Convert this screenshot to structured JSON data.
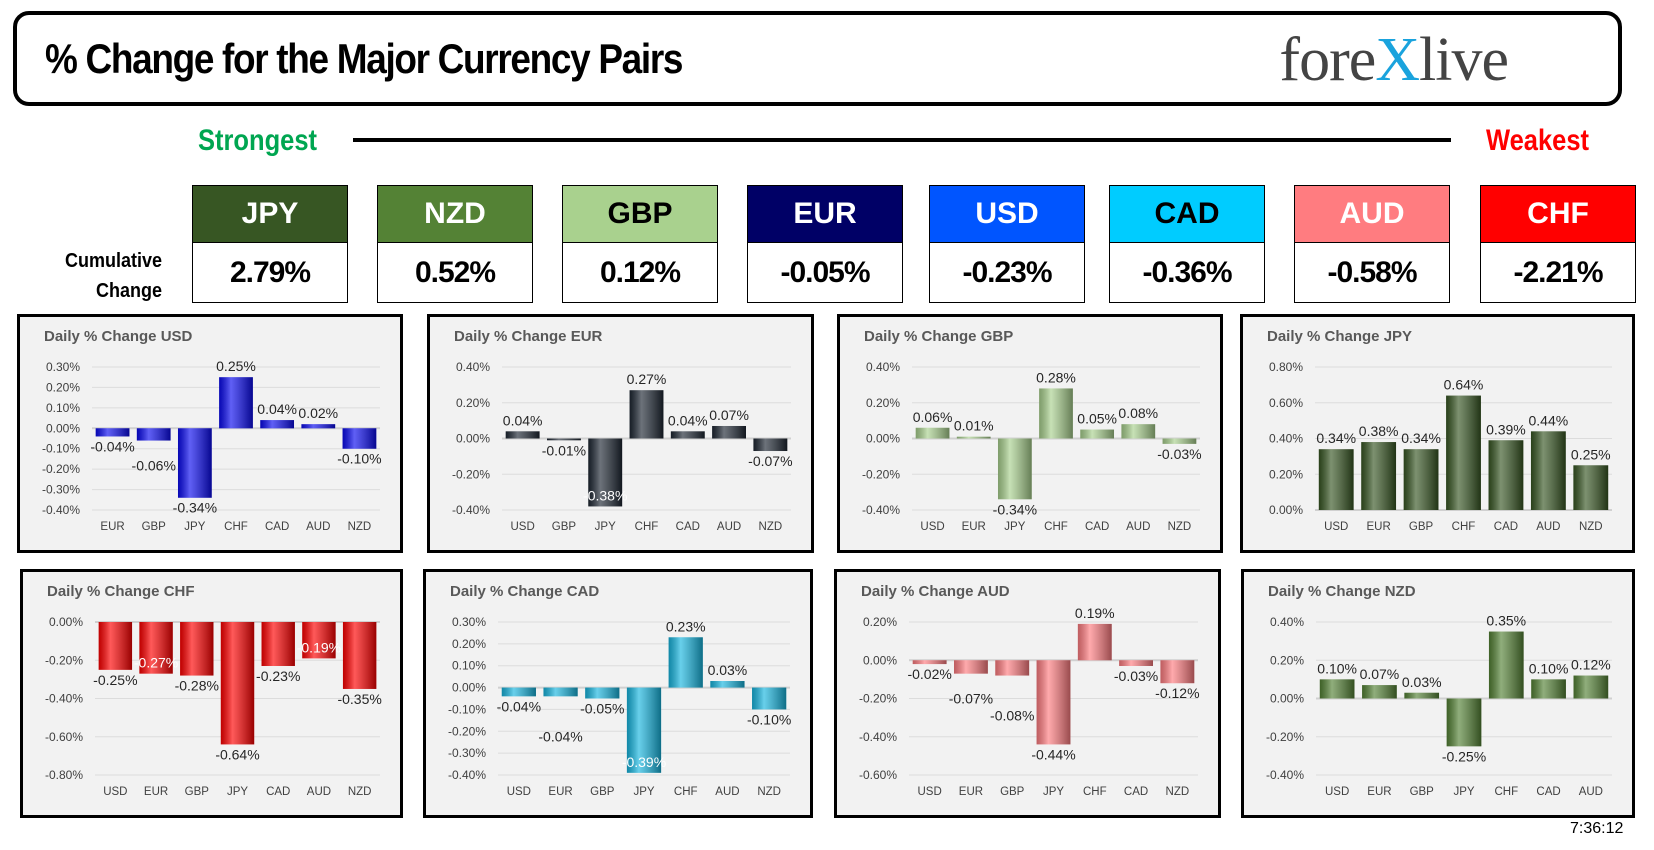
{
  "header": {
    "title": "% Change for the Major Currency Pairs",
    "logo_text": "forexlive",
    "logo_parts": [
      "fore",
      "X",
      "live"
    ]
  },
  "scale": {
    "strongest": "Strongest",
    "weakest": "Weakest"
  },
  "cumulative_label": [
    "Cumulative",
    "Change"
  ],
  "colors": {
    "USD": "#0a0af0",
    "EUR": "#1e2733",
    "GBP": "#a9d18e",
    "JPY": "#375623",
    "CHF": "#ff0000",
    "CAD": "#17b6e0",
    "AUD": "#ff7c80",
    "NZD": "#548235"
  },
  "ranking": [
    {
      "currency": "JPY",
      "value": "2.79%",
      "bg": "#375623",
      "fg": "#ffffff"
    },
    {
      "currency": "NZD",
      "value": "0.52%",
      "bg": "#548235",
      "fg": "#ffffff"
    },
    {
      "currency": "GBP",
      "value": "0.12%",
      "bg": "#a9d18e",
      "fg": "#000000"
    },
    {
      "currency": "EUR",
      "value": "-0.05%",
      "bg": "#000066",
      "fg": "#ffffff"
    },
    {
      "currency": "USD",
      "value": "-0.23%",
      "bg": "#0055ff",
      "fg": "#ffffff"
    },
    {
      "currency": "CAD",
      "value": "-0.36%",
      "bg": "#00ccff",
      "fg": "#000000"
    },
    {
      "currency": "AUD",
      "value": "-0.58%",
      "bg": "#ff7c80",
      "fg": "#ffffff"
    },
    {
      "currency": "CHF",
      "value": "-2.21%",
      "bg": "#ff0000",
      "fg": "#ffffff"
    }
  ],
  "chart_data": [
    {
      "type": "bar",
      "title": "Daily % Change USD",
      "base": "USD",
      "categories": [
        "EUR",
        "GBP",
        "JPY",
        "CHF",
        "CAD",
        "AUD",
        "NZD"
      ],
      "values": [
        -0.04,
        -0.06,
        -0.34,
        0.25,
        0.04,
        0.02,
        -0.1
      ],
      "ylim": [
        -0.4,
        0.3
      ],
      "yticks": [
        0.3,
        0.2,
        0.1,
        0,
        -0.1,
        -0.2,
        -0.3,
        -0.4
      ],
      "grid": true
    },
    {
      "type": "bar",
      "title": "Daily % Change EUR",
      "base": "EUR",
      "categories": [
        "USD",
        "GBP",
        "JPY",
        "CHF",
        "CAD",
        "AUD",
        "NZD"
      ],
      "values": [
        0.04,
        -0.01,
        -0.38,
        0.27,
        0.04,
        0.07,
        -0.07
      ],
      "ylim": [
        -0.4,
        0.4
      ],
      "yticks": [
        0.4,
        0.2,
        0,
        -0.2,
        -0.4
      ],
      "grid": true
    },
    {
      "type": "bar",
      "title": "Daily % Change GBP",
      "base": "GBP",
      "categories": [
        "USD",
        "EUR",
        "JPY",
        "CHF",
        "CAD",
        "AUD",
        "NZD"
      ],
      "values": [
        0.06,
        0.01,
        -0.34,
        0.28,
        0.05,
        0.08,
        -0.03
      ],
      "ylim": [
        -0.4,
        0.4
      ],
      "yticks": [
        0.4,
        0.2,
        0,
        -0.2,
        -0.4
      ],
      "grid": true
    },
    {
      "type": "bar",
      "title": "Daily % Change JPY",
      "base": "JPY",
      "categories": [
        "USD",
        "EUR",
        "GBP",
        "CHF",
        "CAD",
        "AUD",
        "NZD"
      ],
      "values": [
        0.34,
        0.38,
        0.34,
        0.64,
        0.39,
        0.44,
        0.25
      ],
      "ylim": [
        0,
        0.8
      ],
      "yticks": [
        0.8,
        0.6,
        0.4,
        0.2,
        0
      ],
      "grid": true
    },
    {
      "type": "bar",
      "title": "Daily % Change CHF",
      "base": "CHF",
      "categories": [
        "USD",
        "EUR",
        "GBP",
        "JPY",
        "CAD",
        "AUD",
        "NZD"
      ],
      "values": [
        -0.25,
        -0.27,
        -0.28,
        -0.64,
        -0.23,
        -0.19,
        -0.35
      ],
      "ylim": [
        -0.8,
        0
      ],
      "yticks": [
        0,
        -0.2,
        -0.4,
        -0.6,
        -0.8
      ],
      "grid": true
    },
    {
      "type": "bar",
      "title": "Daily % Change CAD",
      "base": "CAD",
      "categories": [
        "USD",
        "EUR",
        "GBP",
        "JPY",
        "CHF",
        "AUD",
        "NZD"
      ],
      "values": [
        -0.04,
        -0.04,
        -0.05,
        -0.39,
        0.23,
        0.03,
        -0.1
      ],
      "ylim": [
        -0.4,
        0.3
      ],
      "yticks": [
        0.3,
        0.2,
        0.1,
        0,
        -0.1,
        -0.2,
        -0.3,
        -0.4
      ],
      "grid": true
    },
    {
      "type": "bar",
      "title": "Daily % Change AUD",
      "base": "AUD",
      "categories": [
        "USD",
        "EUR",
        "GBP",
        "JPY",
        "CHF",
        "CAD",
        "NZD"
      ],
      "values": [
        -0.02,
        -0.07,
        -0.08,
        -0.44,
        0.19,
        -0.03,
        -0.12
      ],
      "ylim": [
        -0.6,
        0.2
      ],
      "yticks": [
        0.2,
        0,
        -0.2,
        -0.4,
        -0.6
      ],
      "grid": true
    },
    {
      "type": "bar",
      "title": "Daily % Change NZD",
      "base": "NZD",
      "categories": [
        "USD",
        "EUR",
        "GBP",
        "JPY",
        "CHF",
        "CAD",
        "AUD"
      ],
      "values": [
        0.1,
        0.07,
        0.03,
        -0.25,
        0.35,
        0.1,
        0.12
      ],
      "ylim": [
        -0.4,
        0.4
      ],
      "yticks": [
        0.4,
        0.2,
        0,
        -0.2,
        -0.4
      ],
      "grid": true
    }
  ],
  "timestamp": "7:36:12"
}
